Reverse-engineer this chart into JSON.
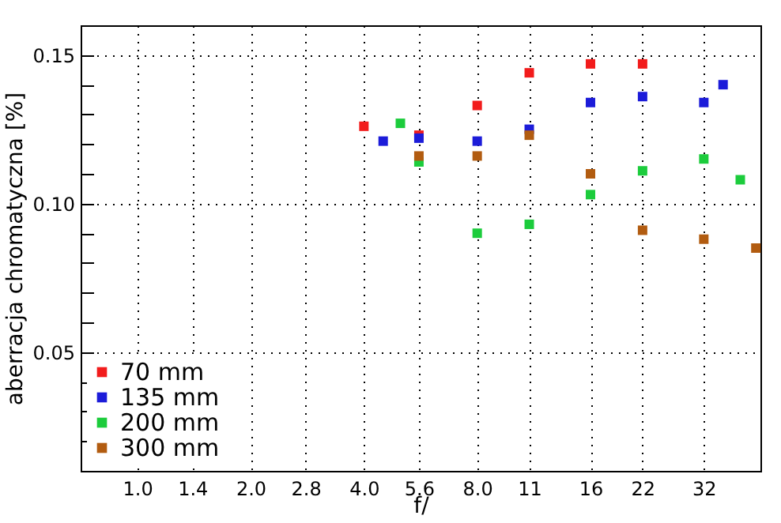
{
  "chart_data": {
    "type": "scatter",
    "xlabel": "f/",
    "ylabel": "aberracja chromatyczna [%]",
    "log": "x",
    "grid": true,
    "legend": "bottom left",
    "marker": "square",
    "xlim": [
      0.707,
      45.25
    ],
    "ylim": [
      0.01,
      0.16
    ],
    "xticks": [
      {
        "value": 1,
        "label": "1.0"
      },
      1.4,
      {
        "value": 2,
        "label": "2.0"
      },
      2.8,
      {
        "value": 4,
        "label": "4.0"
      },
      5.6,
      {
        "value": 8,
        "label": "8.0"
      },
      11,
      16,
      22,
      32
    ],
    "yticks": [
      {
        "value": 0.02,
        "label": null
      },
      {
        "value": 0.03,
        "label": null
      },
      {
        "value": 0.04,
        "label": null
      },
      0.05,
      {
        "value": 0.06,
        "label": null
      },
      {
        "value": 0.07,
        "label": null
      },
      {
        "value": 0.08,
        "label": null
      },
      {
        "value": 0.09,
        "label": null
      },
      {
        "value": 0.1,
        "label": "0.10"
      },
      {
        "value": 0.11,
        "label": null
      },
      {
        "value": 0.12,
        "label": null
      },
      {
        "value": 0.13,
        "label": null
      },
      {
        "value": 0.14,
        "label": null
      },
      0.15
    ],
    "series": [
      {
        "name": "70 mm",
        "color": "#f21c1c",
        "x": [
          4,
          5.6,
          8,
          11,
          16,
          22
        ],
        "values": [
          0.126,
          0.123,
          0.133,
          0.144,
          0.147,
          0.147
        ]
      },
      {
        "name": "135 mm",
        "color": "#1c1cd9",
        "x": [
          4.5,
          5.6,
          8,
          11,
          16,
          22,
          32,
          36
        ],
        "values": [
          0.121,
          0.122,
          0.121,
          0.125,
          0.134,
          0.136,
          0.134,
          0.14
        ]
      },
      {
        "name": "200 mm",
        "color": "#1ccc3c",
        "x": [
          5,
          5.6,
          8,
          11,
          16,
          22,
          32,
          40
        ],
        "values": [
          0.127,
          0.114,
          0.09,
          0.093,
          0.103,
          0.111,
          0.115,
          0.108
        ]
      },
      {
        "name": "300 mm",
        "color": "#b25c10",
        "x": [
          5.6,
          8,
          11,
          16,
          22,
          32,
          44
        ],
        "values": [
          0.116,
          0.116,
          0.123,
          0.11,
          0.091,
          0.088,
          0.085
        ]
      }
    ]
  }
}
